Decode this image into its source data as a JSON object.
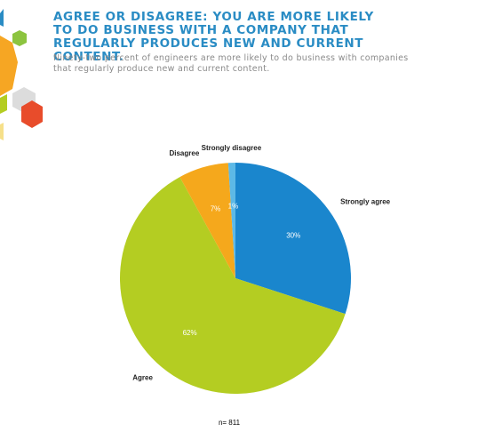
{
  "chart_data": {
    "type": "pie",
    "title": "AGREE OR DISAGREE: YOU ARE MORE LIKELY TO DO BUSINESS WITH A COMPANY THAT REGULARLY PRODUCES NEW AND CURRENT CONTENT.",
    "subtitle": "Ninety-two percent of engineers are more likely to do business with companies that regularly produce new and current content.",
    "categories": [
      "Strongly agree",
      "Agree",
      "Disagree",
      "Strongly disagree"
    ],
    "values": [
      30,
      62,
      7,
      1
    ],
    "value_labels": [
      "30%",
      "62%",
      "7%",
      "1%"
    ],
    "colors": [
      "#1a86cd",
      "#b4cd22",
      "#f5a81c",
      "#5db9e6"
    ],
    "note": "n= 811"
  }
}
